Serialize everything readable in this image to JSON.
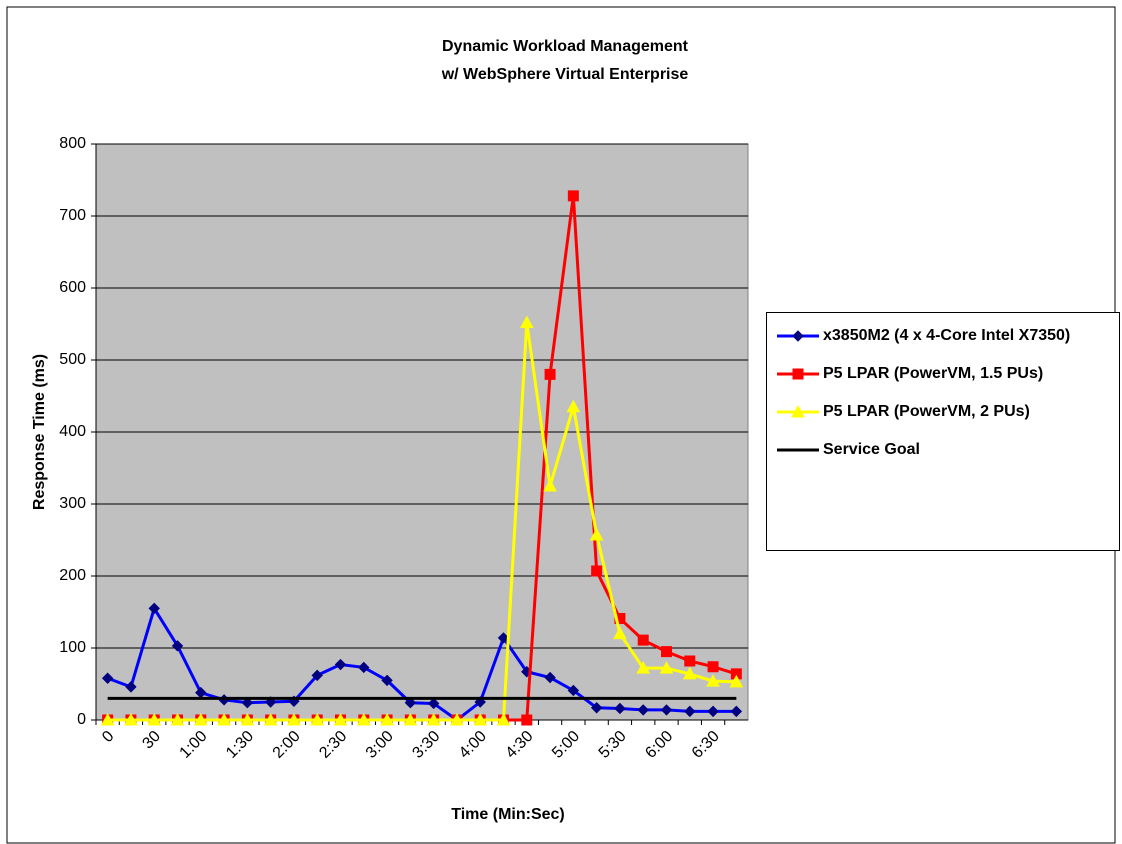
{
  "chart_data": {
    "type": "line",
    "title": [
      "Dynamic Workload Management",
      "w/ WebSphere Virtual Enterprise"
    ],
    "x_label": "Time (Min:Sec)",
    "y_label": "Response Time (ms)",
    "categories": [
      "0",
      null,
      "30",
      null,
      "1:00",
      null,
      "1:30",
      null,
      "2:00",
      null,
      "2:30",
      null,
      "3:00",
      null,
      "3:30",
      null,
      "4:00",
      null,
      "4:30",
      null,
      "5:00",
      null,
      "5:30",
      null,
      "6:00",
      null,
      "6:30",
      null
    ],
    "ylim": [
      0,
      800
    ],
    "yticks": [
      0,
      100,
      200,
      300,
      400,
      500,
      600,
      700,
      800
    ],
    "grid": true,
    "legend": "right",
    "series": [
      {
        "name": "x3850M2 (4 x 4-Core Intel X7350)",
        "color": "#0000ff",
        "marker": "diamond",
        "marker_color": "#000080",
        "values": [
          58,
          46,
          155,
          103,
          38,
          28,
          24,
          25,
          26,
          62,
          77,
          73,
          55,
          24,
          23,
          0,
          25,
          114,
          67,
          59,
          41,
          17,
          16,
          14,
          14,
          12,
          12,
          12
        ]
      },
      {
        "name": "P5 LPAR (PowerVM, 1.5 PUs)",
        "color": "#ff0000",
        "marker": "square",
        "marker_color": "#ff0000",
        "values": [
          0,
          0,
          0,
          0,
          0,
          0,
          0,
          0,
          0,
          0,
          0,
          0,
          0,
          0,
          0,
          0,
          0,
          0,
          0,
          480,
          728,
          207,
          141,
          111,
          95,
          82,
          74,
          64
        ]
      },
      {
        "name": "P5 LPAR (PowerVM, 2 PUs)",
        "color": "#ffff00",
        "marker": "triangle",
        "marker_color": "#ffff00",
        "values": [
          0,
          0,
          0,
          0,
          0,
          0,
          0,
          0,
          0,
          0,
          0,
          0,
          0,
          0,
          0,
          0,
          0,
          0,
          552,
          325,
          435,
          257,
          120,
          72,
          72,
          64,
          54,
          53
        ]
      },
      {
        "name": "Service Goal",
        "color": "#000000",
        "values": [
          30,
          30,
          30,
          30,
          30,
          30,
          30,
          30,
          30,
          30,
          30,
          30,
          30,
          30,
          30,
          30,
          30,
          30,
          30,
          30,
          30,
          30,
          30,
          30,
          30,
          30,
          30,
          30
        ]
      }
    ]
  }
}
